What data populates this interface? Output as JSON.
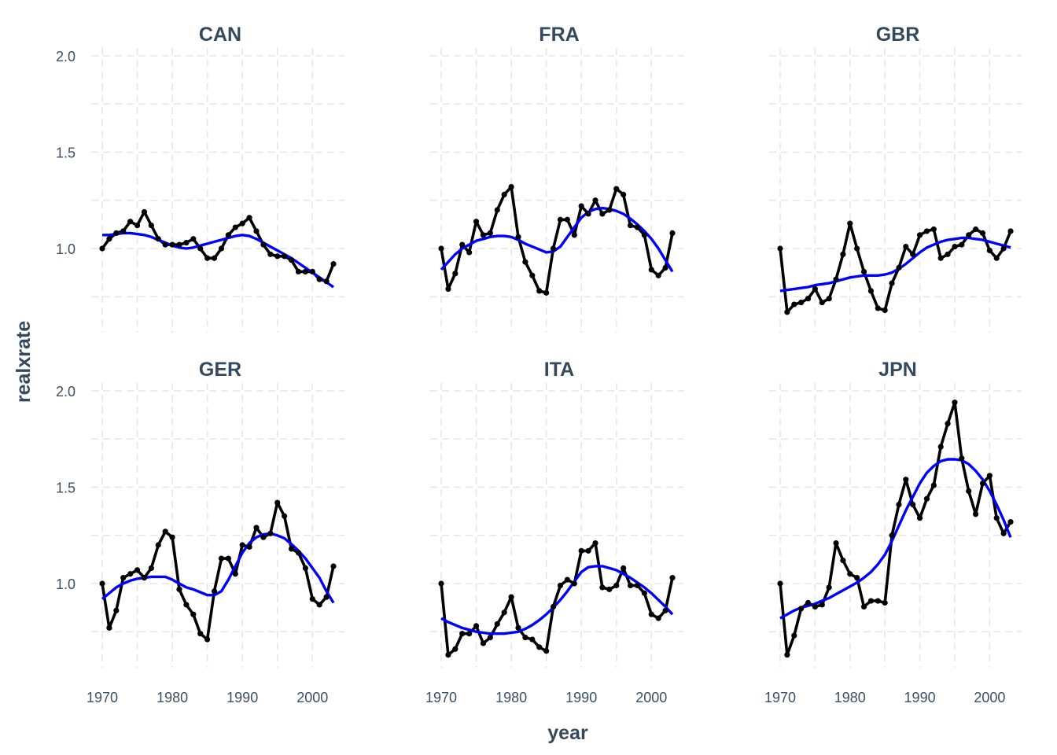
{
  "chart_data": {
    "type": "line",
    "layout": "facet-grid 2x3",
    "xlabel": "year",
    "ylabel": "realxrate",
    "xlim": [
      1970,
      2003
    ],
    "ylim": [
      0.58,
      2.0
    ],
    "xticks": [
      1970,
      1980,
      1990,
      2000
    ],
    "yticks": [
      1.0,
      1.5,
      2.0
    ],
    "ytick_labels": [
      "1.0",
      "1.5",
      "2.0"
    ],
    "grid": true,
    "series_color": "#000000",
    "smooth_color": "#0000ff",
    "x": [
      1970,
      1971,
      1972,
      1973,
      1974,
      1975,
      1976,
      1977,
      1978,
      1979,
      1980,
      1981,
      1982,
      1983,
      1984,
      1985,
      1986,
      1987,
      1988,
      1989,
      1990,
      1991,
      1992,
      1993,
      1994,
      1995,
      1996,
      1997,
      1998,
      1999,
      2000,
      2001,
      2002,
      2003
    ],
    "panels": [
      {
        "name": "CAN",
        "values": [
          1.0,
          1.05,
          1.08,
          1.09,
          1.14,
          1.12,
          1.19,
          1.12,
          1.05,
          1.02,
          1.02,
          1.02,
          1.03,
          1.05,
          1.0,
          0.95,
          0.95,
          1.0,
          1.07,
          1.11,
          1.13,
          1.16,
          1.09,
          1.02,
          0.97,
          0.96,
          0.96,
          0.94,
          0.88,
          0.88,
          0.88,
          0.84,
          0.83,
          0.92
        ],
        "smooth": [
          1.07,
          1.07,
          1.075,
          1.08,
          1.08,
          1.075,
          1.07,
          1.06,
          1.045,
          1.03,
          1.015,
          1.005,
          1.0,
          1.005,
          1.015,
          1.025,
          1.035,
          1.045,
          1.055,
          1.065,
          1.07,
          1.065,
          1.05,
          1.03,
          1.01,
          0.99,
          0.97,
          0.95,
          0.925,
          0.9,
          0.875,
          0.85,
          0.825,
          0.8
        ]
      },
      {
        "name": "FRA",
        "values": [
          1.0,
          0.79,
          0.87,
          1.02,
          0.98,
          1.14,
          1.07,
          1.08,
          1.2,
          1.28,
          1.32,
          1.06,
          0.93,
          0.86,
          0.78,
          0.77,
          1.0,
          1.15,
          1.15,
          1.07,
          1.22,
          1.18,
          1.25,
          1.18,
          1.2,
          1.31,
          1.28,
          1.12,
          1.11,
          1.07,
          0.89,
          0.86,
          0.9,
          1.08
        ],
        "smooth": [
          0.89,
          0.93,
          0.97,
          1.0,
          1.02,
          1.04,
          1.05,
          1.06,
          1.065,
          1.065,
          1.06,
          1.045,
          1.025,
          1.01,
          0.995,
          0.98,
          0.985,
          1.01,
          1.06,
          1.11,
          1.16,
          1.19,
          1.205,
          1.21,
          1.205,
          1.195,
          1.18,
          1.155,
          1.125,
          1.09,
          1.05,
          1.0,
          0.94,
          0.88
        ]
      },
      {
        "name": "GBR",
        "values": [
          1.0,
          0.67,
          0.71,
          0.72,
          0.74,
          0.79,
          0.72,
          0.74,
          0.84,
          0.97,
          1.13,
          1.0,
          0.88,
          0.78,
          0.69,
          0.68,
          0.82,
          0.9,
          1.01,
          0.97,
          1.07,
          1.09,
          1.1,
          0.95,
          0.97,
          1.01,
          1.02,
          1.07,
          1.1,
          1.08,
          0.99,
          0.95,
          1.0,
          1.09
        ],
        "smooth": [
          0.78,
          0.785,
          0.79,
          0.795,
          0.8,
          0.81,
          0.815,
          0.82,
          0.83,
          0.84,
          0.85,
          0.855,
          0.86,
          0.86,
          0.86,
          0.865,
          0.875,
          0.895,
          0.92,
          0.95,
          0.98,
          1.005,
          1.02,
          1.035,
          1.045,
          1.05,
          1.055,
          1.055,
          1.05,
          1.045,
          1.035,
          1.025,
          1.015,
          1.005
        ]
      },
      {
        "name": "GER",
        "values": [
          1.0,
          0.77,
          0.86,
          1.03,
          1.05,
          1.07,
          1.03,
          1.08,
          1.2,
          1.27,
          1.24,
          0.97,
          0.89,
          0.84,
          0.74,
          0.71,
          0.96,
          1.13,
          1.13,
          1.05,
          1.2,
          1.19,
          1.29,
          1.24,
          1.26,
          1.42,
          1.35,
          1.18,
          1.16,
          1.08,
          0.92,
          0.89,
          0.93,
          1.09
        ],
        "smooth": [
          0.92,
          0.95,
          0.98,
          1.0,
          1.015,
          1.025,
          1.03,
          1.035,
          1.035,
          1.035,
          1.02,
          1.0,
          0.98,
          0.97,
          0.955,
          0.94,
          0.94,
          0.96,
          1.02,
          1.09,
          1.16,
          1.21,
          1.24,
          1.255,
          1.26,
          1.25,
          1.235,
          1.205,
          1.17,
          1.13,
          1.08,
          1.03,
          0.96,
          0.9
        ]
      },
      {
        "name": "ITA",
        "values": [
          1.0,
          0.63,
          0.66,
          0.74,
          0.74,
          0.78,
          0.69,
          0.72,
          0.79,
          0.85,
          0.93,
          0.77,
          0.72,
          0.71,
          0.67,
          0.65,
          0.88,
          0.99,
          1.02,
          1.0,
          1.17,
          1.17,
          1.21,
          0.98,
          0.97,
          0.99,
          1.08,
          0.99,
          0.99,
          0.95,
          0.84,
          0.82,
          0.86,
          1.03
        ],
        "smooth": [
          0.82,
          0.8,
          0.785,
          0.77,
          0.76,
          0.75,
          0.745,
          0.74,
          0.74,
          0.74,
          0.745,
          0.75,
          0.765,
          0.785,
          0.81,
          0.84,
          0.875,
          0.915,
          0.96,
          1.01,
          1.06,
          1.085,
          1.09,
          1.09,
          1.08,
          1.07,
          1.05,
          1.03,
          1.005,
          0.98,
          0.95,
          0.915,
          0.88,
          0.84
        ]
      },
      {
        "name": "JPN",
        "values": [
          1.0,
          0.63,
          0.73,
          0.87,
          0.9,
          0.88,
          0.89,
          0.98,
          1.21,
          1.12,
          1.05,
          1.03,
          0.88,
          0.91,
          0.91,
          0.9,
          1.25,
          1.41,
          1.54,
          1.41,
          1.34,
          1.44,
          1.51,
          1.71,
          1.83,
          1.94,
          1.65,
          1.48,
          1.36,
          1.52,
          1.56,
          1.34,
          1.26,
          1.32
        ],
        "smooth": [
          0.82,
          0.84,
          0.86,
          0.875,
          0.885,
          0.895,
          0.91,
          0.925,
          0.945,
          0.965,
          0.985,
          1.005,
          1.03,
          1.06,
          1.1,
          1.15,
          1.22,
          1.3,
          1.38,
          1.45,
          1.52,
          1.575,
          1.61,
          1.635,
          1.645,
          1.645,
          1.64,
          1.62,
          1.585,
          1.54,
          1.48,
          1.41,
          1.33,
          1.24
        ]
      }
    ]
  }
}
